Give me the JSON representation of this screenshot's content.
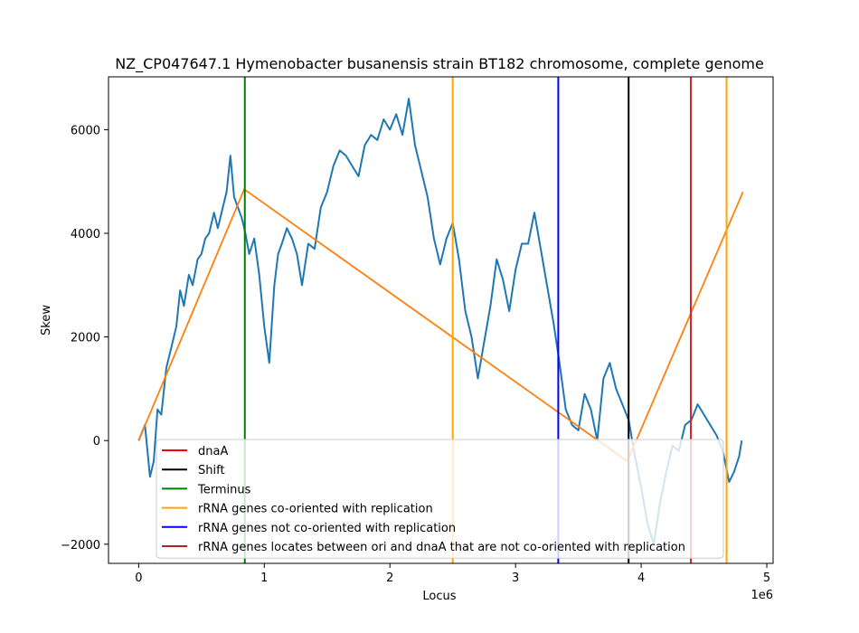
{
  "chart_data": {
    "type": "line",
    "title": "NZ_CP047647.1 Hymenobacter busanensis strain BT182 chromosome, complete genome",
    "xlabel": "Locus",
    "ylabel": "Skew",
    "x_offset_label": "1e6",
    "x_ticks": [
      0,
      1,
      2,
      3,
      4,
      5
    ],
    "y_ticks": [
      -2000,
      0,
      2000,
      4000,
      6000
    ],
    "xlim": [
      -0.24,
      5.05
    ],
    "ylim": [
      -2370,
      7020
    ],
    "x_unit_multiplier": 1000000,
    "grid": false,
    "legend_position": "lower-center",
    "series": [
      {
        "color": "#1f77b4",
        "x": [
          0,
          0.05,
          0.09,
          0.12,
          0.15,
          0.18,
          0.22,
          0.26,
          0.3,
          0.33,
          0.36,
          0.4,
          0.43,
          0.47,
          0.5,
          0.53,
          0.56,
          0.6,
          0.63,
          0.66,
          0.7,
          0.73,
          0.76,
          0.79,
          0.82,
          0.85,
          0.88,
          0.92,
          0.96,
          1.0,
          1.04,
          1.08,
          1.11,
          1.14,
          1.18,
          1.22,
          1.26,
          1.3,
          1.35,
          1.4,
          1.45,
          1.5,
          1.55,
          1.6,
          1.65,
          1.7,
          1.75,
          1.8,
          1.85,
          1.9,
          1.95,
          2.0,
          2.05,
          2.1,
          2.15,
          2.2,
          2.25,
          2.3,
          2.35,
          2.4,
          2.45,
          2.5,
          2.55,
          2.6,
          2.65,
          2.7,
          2.75,
          2.8,
          2.85,
          2.9,
          2.95,
          3.0,
          3.05,
          3.1,
          3.15,
          3.2,
          3.25,
          3.3,
          3.35,
          3.4,
          3.45,
          3.5,
          3.55,
          3.6,
          3.65,
          3.7,
          3.75,
          3.8,
          3.85,
          3.9,
          3.95,
          4.0,
          4.05,
          4.1,
          4.15,
          4.2,
          4.25,
          4.3,
          4.35,
          4.4,
          4.45,
          4.5,
          4.55,
          4.6,
          4.65,
          4.7,
          4.74,
          4.78,
          4.8
        ],
        "y": [
          0,
          300,
          -700,
          -400,
          600,
          500,
          1400,
          1800,
          2200,
          2900,
          2600,
          3200,
          3000,
          3500,
          3600,
          3900,
          4000,
          4400,
          4100,
          4400,
          4800,
          5500,
          4700,
          4500,
          4300,
          4000,
          3600,
          3900,
          3200,
          2200,
          1500,
          3000,
          3600,
          3800,
          4100,
          3900,
          3600,
          3000,
          3800,
          3700,
          4500,
          4800,
          5300,
          5600,
          5500,
          5300,
          5100,
          5700,
          5900,
          5800,
          6200,
          6000,
          6300,
          5900,
          6600,
          5700,
          5200,
          4700,
          3900,
          3400,
          3900,
          4200,
          3500,
          2500,
          2000,
          1200,
          1900,
          2600,
          3500,
          3100,
          2500,
          3300,
          3800,
          3800,
          4400,
          3700,
          3000,
          2300,
          1500,
          600,
          300,
          200,
          900,
          600,
          0,
          1200,
          1500,
          1000,
          700,
          400,
          -300,
          -900,
          -1600,
          -2000,
          -1200,
          -600,
          -100,
          -200,
          300,
          400,
          700,
          500,
          300,
          100,
          -200,
          -800,
          -600,
          -300,
          0
        ]
      },
      {
        "color": "#ff7f0e",
        "x": [
          0,
          0.84,
          3.89,
          4.81
        ],
        "y": [
          0,
          4850,
          -400,
          4800
        ]
      }
    ],
    "vlines": [
      {
        "x": 4.395,
        "color": "#d62728",
        "legend": "dnaA"
      },
      {
        "x": 3.9,
        "color": "#000000",
        "legend": "Shift"
      },
      {
        "x": 0.845,
        "color": "#008000",
        "legend": "Terminus"
      },
      {
        "x": 2.5,
        "color": "#ffa500",
        "legend": "rRNA genes co-oriented with replication"
      },
      {
        "x": 4.68,
        "color": "#ffa500",
        "legend": ""
      },
      {
        "x": 3.34,
        "color": "#0000ff",
        "legend": "rRNA genes not co-oriented with replication"
      }
    ],
    "legend": [
      {
        "label": "dnaA",
        "color": "#ff0000"
      },
      {
        "label": "Shift",
        "color": "#000000"
      },
      {
        "label": "Terminus",
        "color": "#008000"
      },
      {
        "label": "rRNA genes co-oriented with replication",
        "color": "#ffa500"
      },
      {
        "label": "rRNA genes not co-oriented with replication",
        "color": "#0000ff"
      },
      {
        "label": "rRNA genes locates between ori and dnaA that are not co-oriented with replication",
        "color": "#b22222"
      }
    ]
  }
}
